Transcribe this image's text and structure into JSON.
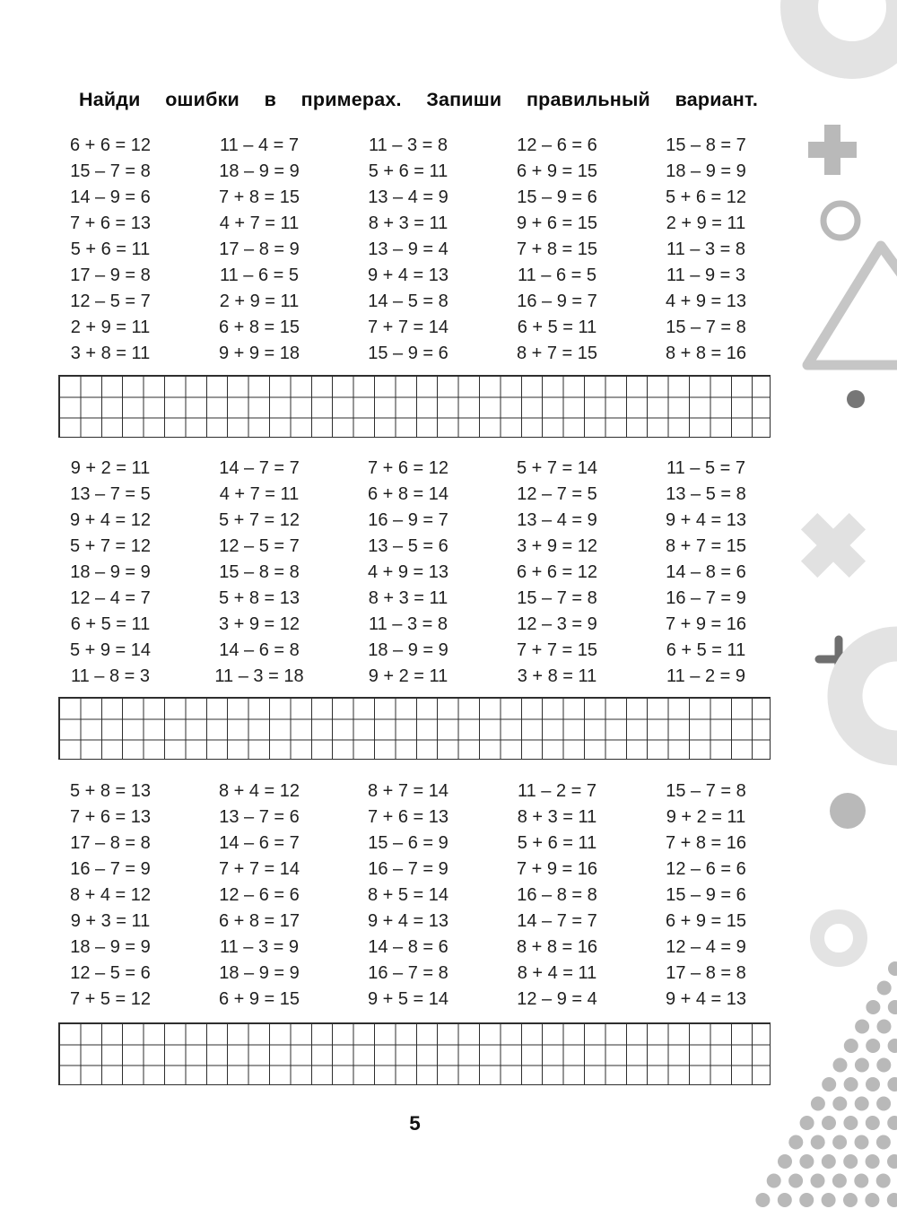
{
  "title": "Найди ошибки в примерах. Запиши правильный вариант.",
  "page_number": "5",
  "blocks": [
    {
      "columns": [
        [
          "6 + 6 = 12",
          "15 – 7 = 8",
          "14 – 9 = 6",
          "7 + 6 = 13",
          "5 + 6 = 11",
          "17 – 9 = 8",
          "12 – 5 = 7",
          "2 + 9 = 11",
          "3 + 8 = 11"
        ],
        [
          "11 – 4 = 7",
          "18 – 9 = 9",
          "7 + 8 = 15",
          "4 + 7 = 11",
          "17 – 8 = 9",
          "11 – 6 = 5",
          "2 + 9 = 11",
          "6 + 8 = 15",
          "9 + 9 = 18"
        ],
        [
          "11 – 3 = 8",
          "5 + 6 = 11",
          "13 – 4 = 9",
          "8 + 3 = 11",
          "13 – 9 = 4",
          "9 + 4 = 13",
          "14 – 5 = 8",
          "7 + 7 = 14",
          "15 – 9 = 6"
        ],
        [
          "12 – 6 = 6",
          "6 + 9 = 15",
          "15 – 9 = 6",
          "9 + 6 = 15",
          "7 + 8 = 15",
          "11 – 6 = 5",
          "16 – 9 = 7",
          "6 + 5 = 11",
          "8 + 7 = 15"
        ],
        [
          "15 – 8 = 7",
          "18 – 9 = 9",
          "5 + 6 = 12",
          "2 + 9 = 11",
          "11 – 3 = 8",
          "11 – 9 = 3",
          "4 + 9 = 13",
          "15 – 7 = 8",
          "8 + 8 = 16"
        ]
      ]
    },
    {
      "columns": [
        [
          "9 + 2 = 11",
          "13 – 7 = 5",
          "9 + 4 = 12",
          "5 + 7 = 12",
          "18 – 9 = 9",
          "12 – 4 = 7",
          "6 + 5 = 11",
          "5 + 9 = 14",
          "11 – 8 = 3"
        ],
        [
          "14 – 7 = 7",
          "4 + 7 = 11",
          "5 + 7 = 12",
          "12 – 5 = 7",
          "15 – 8 = 8",
          "5 + 8 = 13",
          "3 + 9 = 12",
          "14 – 6 = 8",
          "11 – 3 = 18"
        ],
        [
          "7 + 6 = 12",
          "6 + 8 = 14",
          "16 – 9 = 7",
          "13 – 5 = 6",
          "4 + 9 = 13",
          "8 + 3 = 11",
          "11 – 3 = 8",
          "18 – 9 = 9",
          "9 + 2 = 11"
        ],
        [
          "5 + 7 = 14",
          "12 – 7 = 5",
          "13 – 4 = 9",
          "3 + 9 = 12",
          "6 + 6 = 12",
          "15 – 7 = 8",
          "12 – 3 = 9",
          "7 + 7 = 15",
          "3 + 8 = 11"
        ],
        [
          "11 – 5 = 7",
          "13 – 5 = 8",
          "9 + 4 = 13",
          "8 + 7 = 15",
          "14 – 8 = 6",
          "16 – 7 = 9",
          "7 + 9 = 16",
          "6 + 5 = 11",
          "11 – 2 = 9"
        ]
      ]
    },
    {
      "columns": [
        [
          "5 + 8 = 13",
          "7 + 6 = 13",
          "17 – 8 = 8",
          "16 – 7 = 9",
          "8 + 4 = 12",
          "9 + 3 = 11",
          "18 – 9 = 9",
          "12 – 5 = 6",
          "7 + 5 = 12"
        ],
        [
          "8 + 4 = 12",
          "13 – 7 = 6",
          "14 – 6 = 7",
          "7 + 7 = 14",
          "12 – 6 = 6",
          "6 + 8 = 17",
          "11 – 3 = 9",
          "18 – 9 = 9",
          "6 + 9 = 15"
        ],
        [
          "8 + 7 = 14",
          "7 + 6 = 13",
          "15 – 6 = 9",
          "16 – 7 = 9",
          "8 + 5 = 14",
          "9 + 4 = 13",
          "14 – 8 = 6",
          "16 – 7 = 8",
          "9 + 5 = 14"
        ],
        [
          "11 – 2 = 7",
          "8 + 3 = 11",
          "5 + 6 = 11",
          "7 + 9 = 16",
          "16 – 8 = 8",
          "14 – 7 = 7",
          "8 + 8 = 16",
          "8 + 4 = 11",
          "12 – 9 = 4"
        ],
        [
          "15 – 7 = 8",
          "9 + 2 = 11",
          "7 + 8 = 16",
          "12 – 6 = 6",
          "15 – 9 = 6",
          "6 + 9 = 15",
          "12 – 4 = 9",
          "17 – 8 = 8",
          "9 + 4 = 13"
        ]
      ]
    }
  ],
  "decorations": {
    "colors": {
      "light_gray": "#e3e3e3",
      "mid_gray": "#b9b9b9",
      "dark_gray": "#6f6f6f",
      "dot_dark": "#767676",
      "triangle_gray": "#c6c6c6",
      "grid_line": "#2e2e2e",
      "text": "#1f1f1f"
    },
    "shapes": [
      "top-ring",
      "plus",
      "circle-outline",
      "triangle-outline",
      "small-dark-dot",
      "x-mark",
      "thin-cross",
      "large-ring",
      "medium-dot",
      "small-ring",
      "dot-triangle-pattern"
    ]
  }
}
